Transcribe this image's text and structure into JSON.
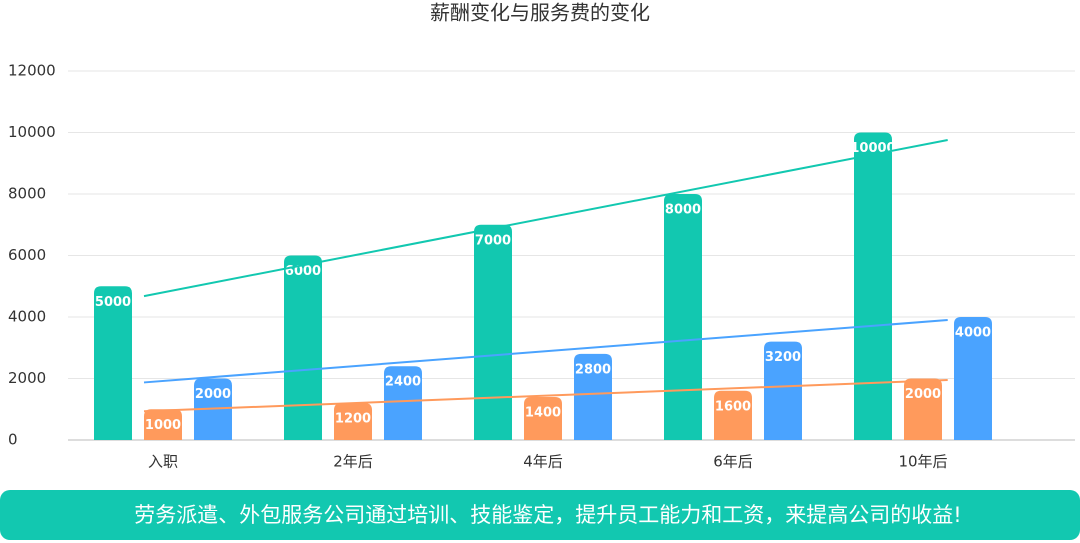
{
  "chart_data": {
    "type": "bar",
    "title": "薪酬变化与服务费的变化",
    "categories": [
      "入职",
      "2年后",
      "4年后",
      "6年后",
      "10年后"
    ],
    "series": [
      {
        "color": "#12c8b0",
        "values": [
          5000,
          6000,
          7000,
          8000,
          10000
        ]
      },
      {
        "color": "#ff9a5c",
        "values": [
          1000,
          1200,
          1400,
          1600,
          2000
        ]
      },
      {
        "color": "#4aa3ff",
        "values": [
          2000,
          2400,
          2800,
          3200,
          4000
        ]
      }
    ],
    "ylim": [
      0,
      12000
    ],
    "yticks": [
      0,
      2000,
      4000,
      6000,
      8000,
      10000,
      12000
    ],
    "grid": true,
    "trendline": true,
    "value_labels_inside": true
  },
  "banner": {
    "text": "劳务派遣、外包服务公司通过培训、技能鉴定，提升员工能力和工资，来提高公司的收益!",
    "color": "#12c8b0"
  }
}
